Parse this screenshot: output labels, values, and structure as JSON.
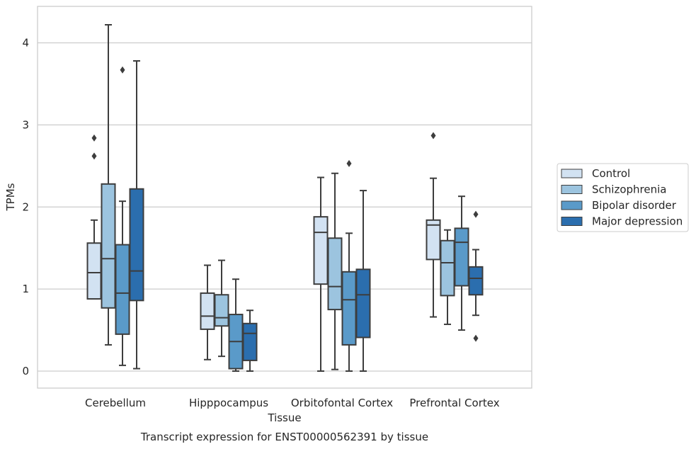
{
  "chart_data": {
    "type": "box",
    "xlabel": "Tissue",
    "ylabel": "TPMs",
    "caption": "Transcript expression for ENST00000562391 by tissue",
    "ylim": [
      -0.2,
      4.45
    ],
    "yticks": [
      0,
      1,
      2,
      3,
      4
    ],
    "grid": "horizontal",
    "legend_position": "right",
    "categories": [
      "Cerebellum",
      "Hipppocampus",
      "Orbitofontal Cortex",
      "Prefrontal Cortex"
    ],
    "series": [
      {
        "name": "Control",
        "color": "#d2e2f2",
        "boxes": [
          {
            "whislo": 0.88,
            "q1": 0.88,
            "med": 1.2,
            "q3": 1.56,
            "whishi": 1.84,
            "fliers": [
              2.62,
              2.84
            ]
          },
          {
            "whislo": 0.14,
            "q1": 0.51,
            "med": 0.67,
            "q3": 0.95,
            "whishi": 1.29,
            "fliers": []
          },
          {
            "whislo": 0.0,
            "q1": 1.06,
            "med": 1.69,
            "q3": 1.88,
            "whishi": 2.36,
            "fliers": []
          },
          {
            "whislo": 0.66,
            "q1": 1.36,
            "med": 1.78,
            "q3": 1.84,
            "whishi": 2.35,
            "fliers": [
              2.87
            ]
          }
        ]
      },
      {
        "name": "Schizophrenia",
        "color": "#9cc4df",
        "boxes": [
          {
            "whislo": 0.32,
            "q1": 0.77,
            "med": 1.37,
            "q3": 2.28,
            "whishi": 4.22,
            "fliers": []
          },
          {
            "whislo": 0.18,
            "q1": 0.55,
            "med": 0.65,
            "q3": 0.93,
            "whishi": 1.35,
            "fliers": []
          },
          {
            "whislo": 0.02,
            "q1": 0.75,
            "med": 1.03,
            "q3": 1.62,
            "whishi": 2.41,
            "fliers": []
          },
          {
            "whislo": 0.57,
            "q1": 0.92,
            "med": 1.32,
            "q3": 1.59,
            "whishi": 1.72,
            "fliers": []
          }
        ]
      },
      {
        "name": "Bipolar disorder",
        "color": "#5a9ac9",
        "boxes": [
          {
            "whislo": 0.07,
            "q1": 0.45,
            "med": 0.95,
            "q3": 1.54,
            "whishi": 2.07,
            "fliers": [
              3.67
            ]
          },
          {
            "whislo": 0.0,
            "q1": 0.03,
            "med": 0.36,
            "q3": 0.69,
            "whishi": 1.12,
            "fliers": []
          },
          {
            "whislo": 0.0,
            "q1": 0.32,
            "med": 0.87,
            "q3": 1.21,
            "whishi": 1.68,
            "fliers": [
              2.53
            ]
          },
          {
            "whislo": 0.5,
            "q1": 1.04,
            "med": 1.57,
            "q3": 1.74,
            "whishi": 2.13,
            "fliers": []
          }
        ]
      },
      {
        "name": "Major depression",
        "color": "#2b6eae",
        "boxes": [
          {
            "whislo": 0.03,
            "q1": 0.86,
            "med": 1.22,
            "q3": 2.22,
            "whishi": 3.78,
            "fliers": []
          },
          {
            "whislo": 0.0,
            "q1": 0.13,
            "med": 0.46,
            "q3": 0.58,
            "whishi": 0.74,
            "fliers": []
          },
          {
            "whislo": 0.0,
            "q1": 0.41,
            "med": 0.93,
            "q3": 1.24,
            "whishi": 2.2,
            "fliers": []
          },
          {
            "whislo": 0.68,
            "q1": 0.93,
            "med": 1.13,
            "q3": 1.27,
            "whishi": 1.48,
            "fliers": [
              0.4,
              1.91
            ]
          }
        ]
      }
    ]
  }
}
